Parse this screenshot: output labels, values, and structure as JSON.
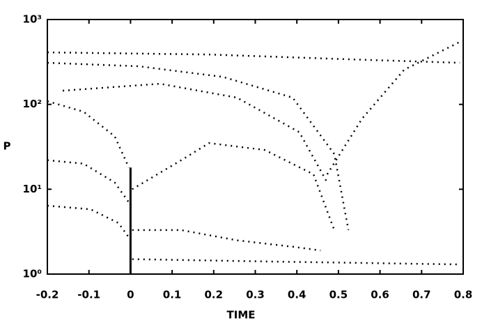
{
  "chart_data": {
    "type": "line",
    "x_label": "TIME",
    "y_label": "P",
    "xlim": [
      -0.2,
      0.8
    ],
    "xticks": [
      -0.2,
      -0.1,
      0,
      0.1,
      0.2,
      0.3,
      0.4,
      0.5,
      0.6,
      0.7,
      0.8
    ],
    "ylim": [
      1,
      1000
    ],
    "log_y": true,
    "yticks": [
      {
        "value": 1,
        "label": "10⁰"
      },
      {
        "value": 10,
        "label": "10¹"
      },
      {
        "value": 100,
        "label": "10²"
      },
      {
        "value": 1000,
        "label": "10³"
      }
    ],
    "color": "#000000",
    "series": [
      {
        "x": [
          -0.2,
          -0.113,
          -0.038,
          -0.004
        ],
        "values": [
          109,
          82,
          42,
          18
        ]
      },
      {
        "x": [
          -0.2,
          -0.113,
          -0.038,
          -0.004
        ],
        "values": [
          22,
          20,
          12,
          7
        ]
      },
      {
        "x": [
          -0.2,
          -0.096,
          -0.029,
          -0.004
        ],
        "values": [
          6.4,
          5.8,
          4,
          2.7
        ]
      },
      {
        "x": [
          -0.2,
          0.021,
          0.222,
          0.39,
          0.49,
          0.524
        ],
        "values": [
          309,
          281,
          211,
          120,
          26,
          3.3
        ]
      },
      {
        "x": [
          -0.163,
          0.071,
          0.256,
          0.406,
          0.473
        ],
        "values": [
          145,
          175,
          120,
          47,
          12
        ]
      },
      {
        "x": [
          0.004,
          0.122,
          0.189,
          0.323,
          0.44,
          0.49
        ],
        "values": [
          10,
          22,
          35,
          29,
          15,
          3.3
        ]
      },
      {
        "x": [
          0.004,
          0.122,
          0.256,
          0.39,
          0.457
        ],
        "values": [
          3.3,
          3.3,
          2.5,
          2.1,
          1.9
        ]
      },
      {
        "x": [
          0.473,
          0.557,
          0.658,
          0.792
        ],
        "values": [
          15,
          68,
          256,
          545
        ]
      },
      {
        "x": [
          -0.2,
          0.189,
          0.524,
          0.792
        ],
        "values": [
          410,
          387,
          340,
          309
        ]
      },
      {
        "x": [
          0.004,
          0.356,
          0.792
        ],
        "values": [
          1.5,
          1.4,
          1.3
        ]
      },
      {
        "x": [
          0,
          0
        ],
        "values": [
          1,
          18
        ]
      }
    ]
  }
}
